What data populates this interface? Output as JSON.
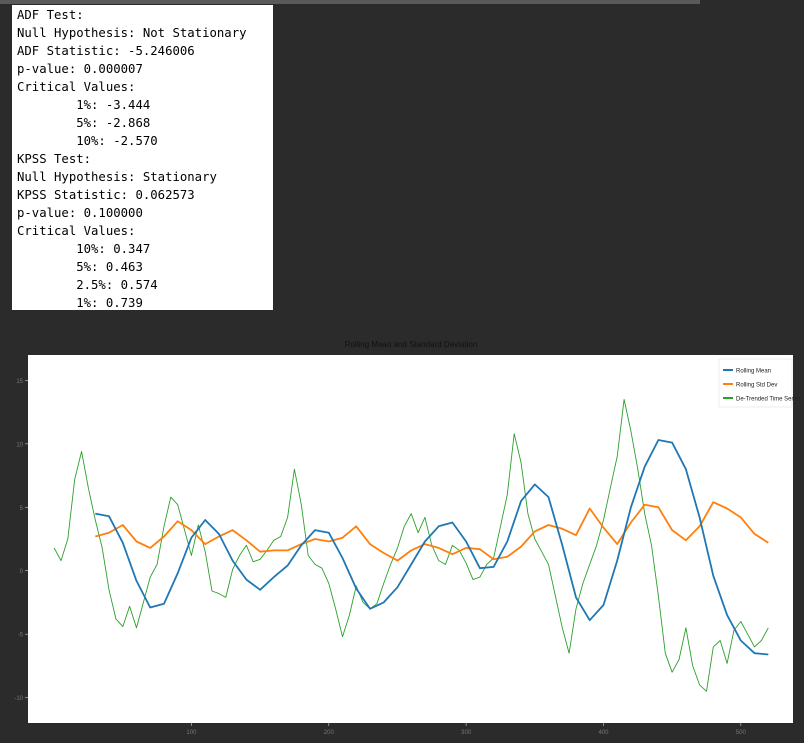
{
  "output_lines": [
    "ADF Test:",
    "Null Hypothesis: Not Stationary",
    "ADF Statistic: -5.246006",
    "p-value: 0.000007",
    "Critical Values:",
    "\t1%: -3.444",
    "\t5%: -2.868",
    "\t10%: -2.570",
    "KPSS Test:",
    "Null Hypothesis: Stationary",
    "KPSS Statistic: 0.062573",
    "p-value: 0.100000",
    "Critical Values:",
    "\t10%: 0.347",
    "\t5%: 0.463",
    "\t2.5%: 0.574",
    "\t1%: 0.739"
  ],
  "chart_data": {
    "type": "line",
    "title": "Rolling Mean and Standard Deviation",
    "xlabel": "",
    "ylabel": "",
    "xlim": [
      -19,
      538
    ],
    "ylim": [
      -12,
      17
    ],
    "yticks": [
      -10,
      -5,
      0,
      5,
      10,
      15
    ],
    "xticks": [
      100,
      200,
      300,
      400,
      500
    ],
    "legend_position": "top-right",
    "grid": false,
    "series": [
      {
        "name": "Rolling Mean",
        "color": "#1f77b4",
        "x": [
          30,
          40,
          50,
          60,
          70,
          80,
          90,
          100,
          110,
          120,
          130,
          140,
          150,
          160,
          170,
          180,
          190,
          200,
          210,
          220,
          230,
          240,
          250,
          260,
          270,
          280,
          290,
          300,
          310,
          320,
          330,
          340,
          350,
          360,
          370,
          380,
          390,
          400,
          410,
          420,
          430,
          440,
          450,
          460,
          470,
          480,
          490,
          500,
          510,
          520
        ],
        "values": [
          4.5,
          4.3,
          2.2,
          -0.8,
          -2.9,
          -2.6,
          -0.2,
          2.6,
          4.0,
          2.9,
          0.8,
          -0.7,
          -1.5,
          -0.5,
          0.4,
          2.0,
          3.2,
          3.0,
          1.0,
          -1.4,
          -3.0,
          -2.5,
          -1.3,
          0.5,
          2.3,
          3.5,
          3.8,
          2.3,
          0.2,
          0.3,
          2.3,
          5.5,
          6.8,
          5.8,
          2.0,
          -2.1,
          -3.9,
          -2.7,
          0.8,
          5.0,
          8.2,
          10.3,
          10.1,
          8.0,
          4.2,
          -0.4,
          -3.5,
          -5.5,
          -6.5,
          -6.6
        ]
      },
      {
        "name": "Rolling Std Dev",
        "color": "#ff7f0e",
        "x": [
          30,
          40,
          50,
          60,
          70,
          80,
          90,
          100,
          110,
          120,
          130,
          140,
          150,
          160,
          170,
          180,
          190,
          200,
          210,
          220,
          230,
          240,
          250,
          260,
          270,
          280,
          290,
          300,
          310,
          320,
          330,
          340,
          350,
          360,
          370,
          380,
          390,
          400,
          410,
          420,
          430,
          440,
          450,
          460,
          470,
          480,
          490,
          500,
          510,
          520
        ],
        "values": [
          2.7,
          3.0,
          3.6,
          2.3,
          1.8,
          2.7,
          3.9,
          3.2,
          2.1,
          2.7,
          3.2,
          2.4,
          1.5,
          1.6,
          1.6,
          2.1,
          2.5,
          2.3,
          2.6,
          3.5,
          2.1,
          1.4,
          0.8,
          1.6,
          2.1,
          1.8,
          1.3,
          1.8,
          1.7,
          0.9,
          1.1,
          1.9,
          3.1,
          3.6,
          3.3,
          2.8,
          4.9,
          3.4,
          2.1,
          3.8,
          5.2,
          5.0,
          3.2,
          2.4,
          3.5,
          5.4,
          4.9,
          4.2,
          2.9,
          2.2
        ]
      },
      {
        "name": "De-Trended Time Series",
        "color": "#2ca02c",
        "x": [
          0,
          5,
          10,
          15,
          20,
          25,
          30,
          35,
          40,
          45,
          50,
          55,
          60,
          65,
          70,
          75,
          80,
          85,
          90,
          95,
          100,
          105,
          110,
          115,
          120,
          125,
          130,
          135,
          140,
          145,
          150,
          155,
          160,
          165,
          170,
          175,
          180,
          185,
          190,
          195,
          200,
          205,
          210,
          215,
          220,
          225,
          230,
          235,
          240,
          245,
          250,
          255,
          260,
          265,
          270,
          275,
          280,
          285,
          290,
          295,
          300,
          305,
          310,
          315,
          320,
          325,
          330,
          335,
          340,
          345,
          350,
          355,
          360,
          365,
          370,
          375,
          380,
          385,
          390,
          395,
          400,
          405,
          410,
          415,
          420,
          425,
          430,
          435,
          440,
          445,
          450,
          455,
          460,
          465,
          470,
          475,
          480,
          485,
          490,
          495,
          500,
          505,
          510,
          515,
          520
        ],
        "values": [
          1.8,
          0.8,
          2.5,
          7.2,
          9.4,
          6.5,
          4.0,
          1.8,
          -1.5,
          -3.8,
          -4.4,
          -2.8,
          -4.5,
          -2.5,
          -0.5,
          0.5,
          3.5,
          5.8,
          5.2,
          3.2,
          1.2,
          3.6,
          1.5,
          -1.6,
          -1.8,
          -2.1,
          0.1,
          1.2,
          2.0,
          0.7,
          0.9,
          1.6,
          2.4,
          2.7,
          4.2,
          8.0,
          5.2,
          1.2,
          0.5,
          0.2,
          -1.0,
          -3.0,
          -5.2,
          -3.5,
          -1.2,
          -2.5,
          -3.0,
          -2.6,
          -1.0,
          0.5,
          1.8,
          3.5,
          4.5,
          3.0,
          4.2,
          2.0,
          0.8,
          0.5,
          2.0,
          1.6,
          0.6,
          -0.7,
          -0.5,
          0.5,
          1.0,
          3.5,
          6.0,
          10.8,
          8.5,
          4.5,
          2.5,
          1.5,
          0.5,
          -2.0,
          -4.5,
          -6.5,
          -3.0,
          -1.0,
          0.5,
          2.0,
          4.0,
          6.5,
          9.0,
          13.5,
          11.0,
          8.0,
          4.5,
          2.0,
          -2.0,
          -6.5,
          -8.0,
          -7.0,
          -4.5,
          -7.5,
          -9.0,
          -9.5,
          -6.0,
          -5.5,
          -7.3,
          -4.7,
          -4.0,
          -5.0,
          -6.0,
          -5.5,
          -4.5
        ]
      }
    ]
  }
}
